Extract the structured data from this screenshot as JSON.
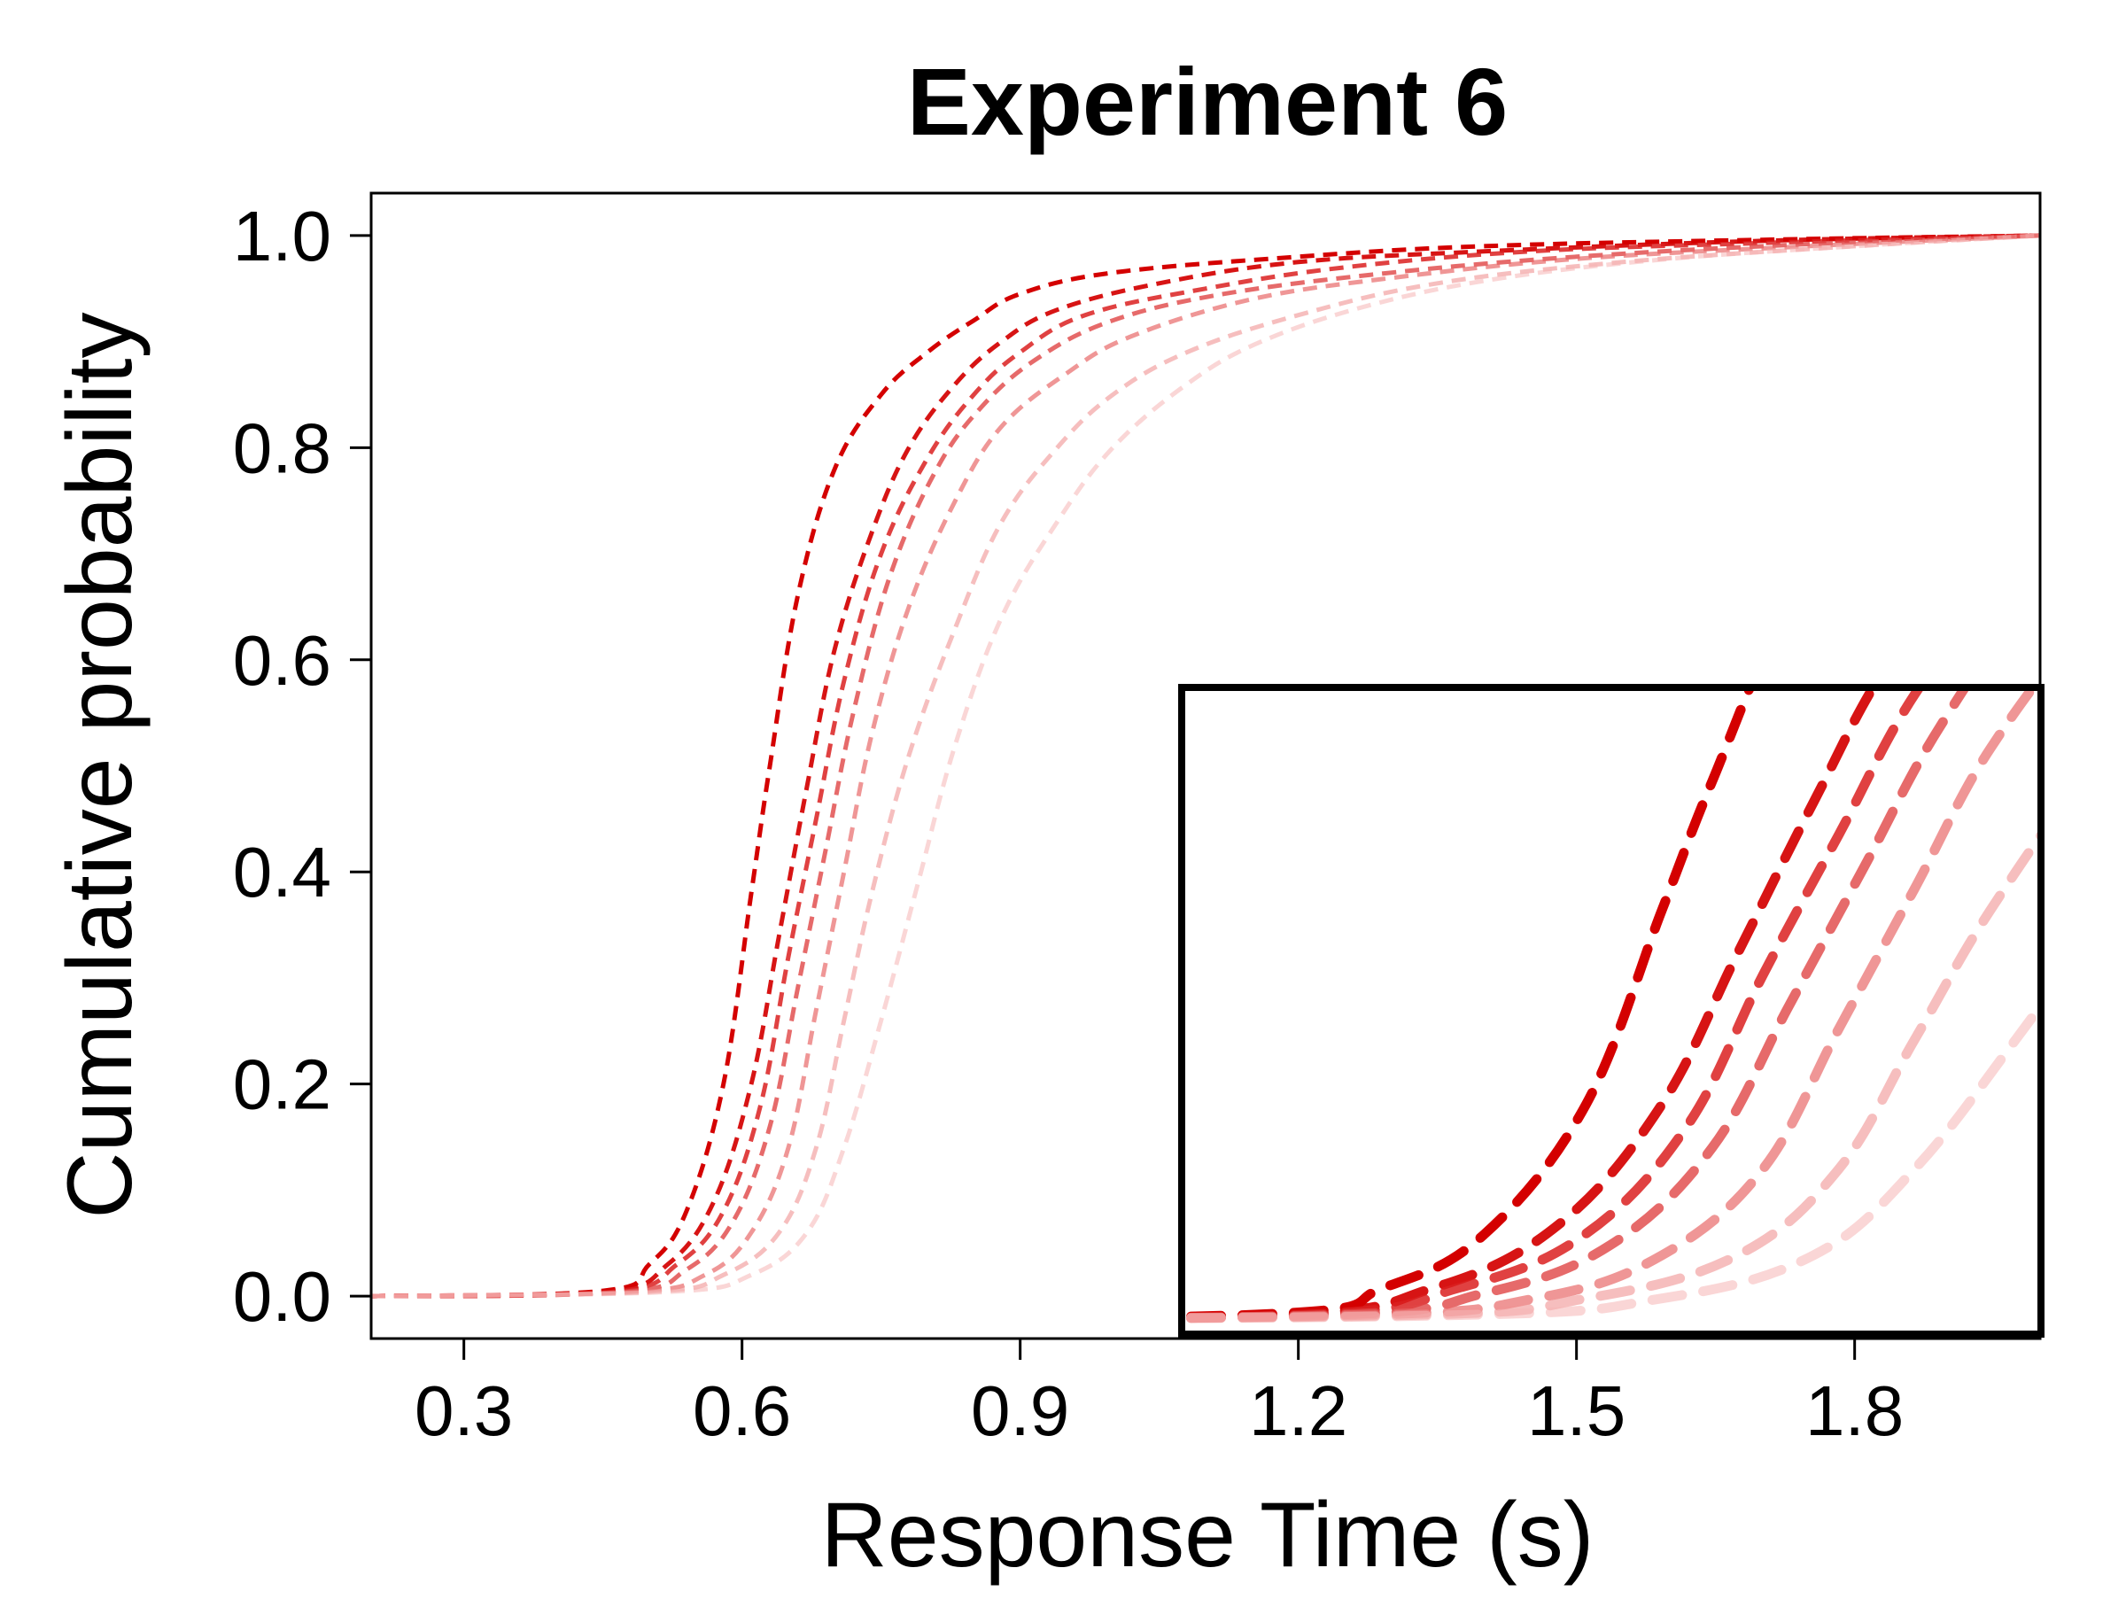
{
  "chart_data": {
    "type": "line",
    "title": "Experiment 6",
    "xlabel": "Response Time (s)",
    "ylabel": "Cumulative probability",
    "xlim": [
      0.2,
      2.0
    ],
    "ylim": [
      -0.04,
      1.04
    ],
    "xticks": [
      "0.3",
      "0.6",
      "0.9",
      "1.2",
      "1.5",
      "1.8"
    ],
    "xtick_values": [
      0.3,
      0.6,
      0.9,
      1.2,
      1.5,
      1.8
    ],
    "yticks": [
      "0.0",
      "0.2",
      "0.4",
      "0.6",
      "0.8",
      "1.0"
    ],
    "ytick_values": [
      0.0,
      0.2,
      0.4,
      0.6,
      0.8,
      1.0
    ],
    "line_style": "dashed",
    "legend": "none",
    "grid": false,
    "series": [
      {
        "color": "#d40000",
        "opacity": 1.0,
        "x": [
          0.2,
          0.45,
          0.5,
          0.54,
          0.58,
          0.61,
          0.63,
          0.66,
          0.7,
          0.75,
          0.8,
          0.85,
          0.9,
          1.0,
          1.2,
          1.4,
          1.7,
          2.0
        ],
        "y": [
          0.0,
          0.005,
          0.03,
          0.08,
          0.2,
          0.38,
          0.5,
          0.66,
          0.78,
          0.85,
          0.89,
          0.92,
          0.945,
          0.965,
          0.98,
          0.99,
          0.996,
          1.0
        ]
      },
      {
        "color": "#d40000",
        "opacity": 0.92,
        "x": [
          0.2,
          0.45,
          0.52,
          0.57,
          0.61,
          0.64,
          0.67,
          0.7,
          0.74,
          0.78,
          0.83,
          0.88,
          0.94,
          1.05,
          1.2,
          1.4,
          1.7,
          2.0
        ],
        "y": [
          0.0,
          0.004,
          0.03,
          0.09,
          0.2,
          0.34,
          0.48,
          0.61,
          0.72,
          0.8,
          0.86,
          0.9,
          0.93,
          0.955,
          0.975,
          0.985,
          0.995,
          1.0
        ]
      },
      {
        "color": "#da2020",
        "opacity": 0.85,
        "x": [
          0.2,
          0.46,
          0.53,
          0.58,
          0.62,
          0.65,
          0.68,
          0.71,
          0.75,
          0.8,
          0.85,
          0.9,
          0.97,
          1.1,
          1.25,
          1.45,
          1.7,
          2.0
        ],
        "y": [
          0.0,
          0.004,
          0.03,
          0.08,
          0.18,
          0.32,
          0.45,
          0.58,
          0.7,
          0.79,
          0.85,
          0.89,
          0.925,
          0.95,
          0.97,
          0.985,
          0.993,
          1.0
        ]
      },
      {
        "color": "#e04545",
        "opacity": 0.8,
        "x": [
          0.2,
          0.47,
          0.54,
          0.59,
          0.63,
          0.66,
          0.69,
          0.72,
          0.76,
          0.81,
          0.86,
          0.92,
          1.0,
          1.12,
          1.3,
          1.5,
          1.75,
          2.0
        ],
        "y": [
          0.0,
          0.004,
          0.025,
          0.07,
          0.16,
          0.29,
          0.42,
          0.55,
          0.68,
          0.78,
          0.84,
          0.885,
          0.92,
          0.945,
          0.965,
          0.98,
          0.992,
          1.0
        ]
      },
      {
        "color": "#e86a6a",
        "opacity": 0.7,
        "x": [
          0.2,
          0.48,
          0.56,
          0.61,
          0.65,
          0.68,
          0.71,
          0.74,
          0.78,
          0.83,
          0.88,
          0.95,
          1.02,
          1.15,
          1.3,
          1.5,
          1.75,
          2.0
        ],
        "y": [
          0.0,
          0.004,
          0.02,
          0.06,
          0.14,
          0.27,
          0.4,
          0.53,
          0.65,
          0.75,
          0.82,
          0.87,
          0.905,
          0.94,
          0.96,
          0.978,
          0.99,
          1.0
        ]
      },
      {
        "color": "#f09292",
        "opacity": 0.6,
        "x": [
          0.2,
          0.5,
          0.58,
          0.64,
          0.68,
          0.71,
          0.74,
          0.78,
          0.83,
          0.88,
          0.94,
          1.0,
          1.08,
          1.2,
          1.35,
          1.55,
          1.8,
          2.0
        ],
        "y": [
          0.0,
          0.004,
          0.02,
          0.06,
          0.14,
          0.26,
          0.38,
          0.51,
          0.63,
          0.73,
          0.8,
          0.85,
          0.89,
          0.925,
          0.955,
          0.975,
          0.99,
          1.0
        ]
      },
      {
        "color": "#f5b4b4",
        "opacity": 0.55,
        "x": [
          0.2,
          0.52,
          0.61,
          0.67,
          0.71,
          0.75,
          0.79,
          0.83,
          0.88,
          0.94,
          1.0,
          1.08,
          1.16,
          1.28,
          1.42,
          1.6,
          1.8,
          2.0
        ],
        "y": [
          0.0,
          0.004,
          0.02,
          0.06,
          0.14,
          0.26,
          0.39,
          0.52,
          0.64,
          0.73,
          0.8,
          0.86,
          0.9,
          0.935,
          0.96,
          0.978,
          0.99,
          1.0
        ]
      }
    ],
    "inset": {
      "xlim": [
        0.42,
        0.76
      ],
      "ylim": [
        0.0,
        0.58
      ]
    }
  }
}
